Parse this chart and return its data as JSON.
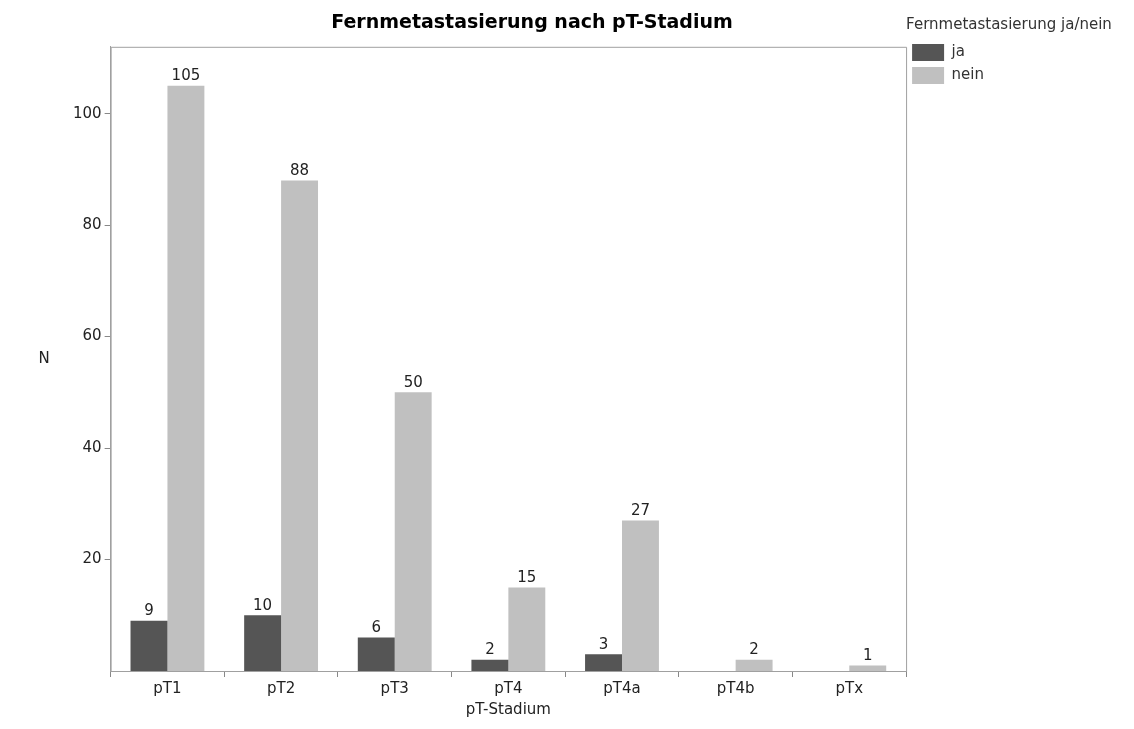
{
  "chart_data": {
    "type": "bar",
    "title": "Fernmetastasierung nach pT-Stadium",
    "xlabel": "pT-Stadium",
    "ylabel": "N",
    "legend_title": "Fernmetastasierung ja/nein",
    "categories": [
      "pT1",
      "pT2",
      "pT3",
      "pT4",
      "pT4a",
      "pT4b",
      "pTx"
    ],
    "series": [
      {
        "name": "ja",
        "color": "#555555",
        "values": [
          9,
          10,
          6,
          2,
          3,
          null,
          null
        ]
      },
      {
        "name": "nein",
        "color": "#c0c0c0",
        "values": [
          105,
          88,
          50,
          15,
          27,
          2,
          1
        ]
      }
    ],
    "ylim": [
      0,
      112
    ],
    "yticks": [
      20,
      40,
      60,
      80,
      100
    ],
    "grid": false,
    "legend": "top right",
    "data_labels": true
  }
}
